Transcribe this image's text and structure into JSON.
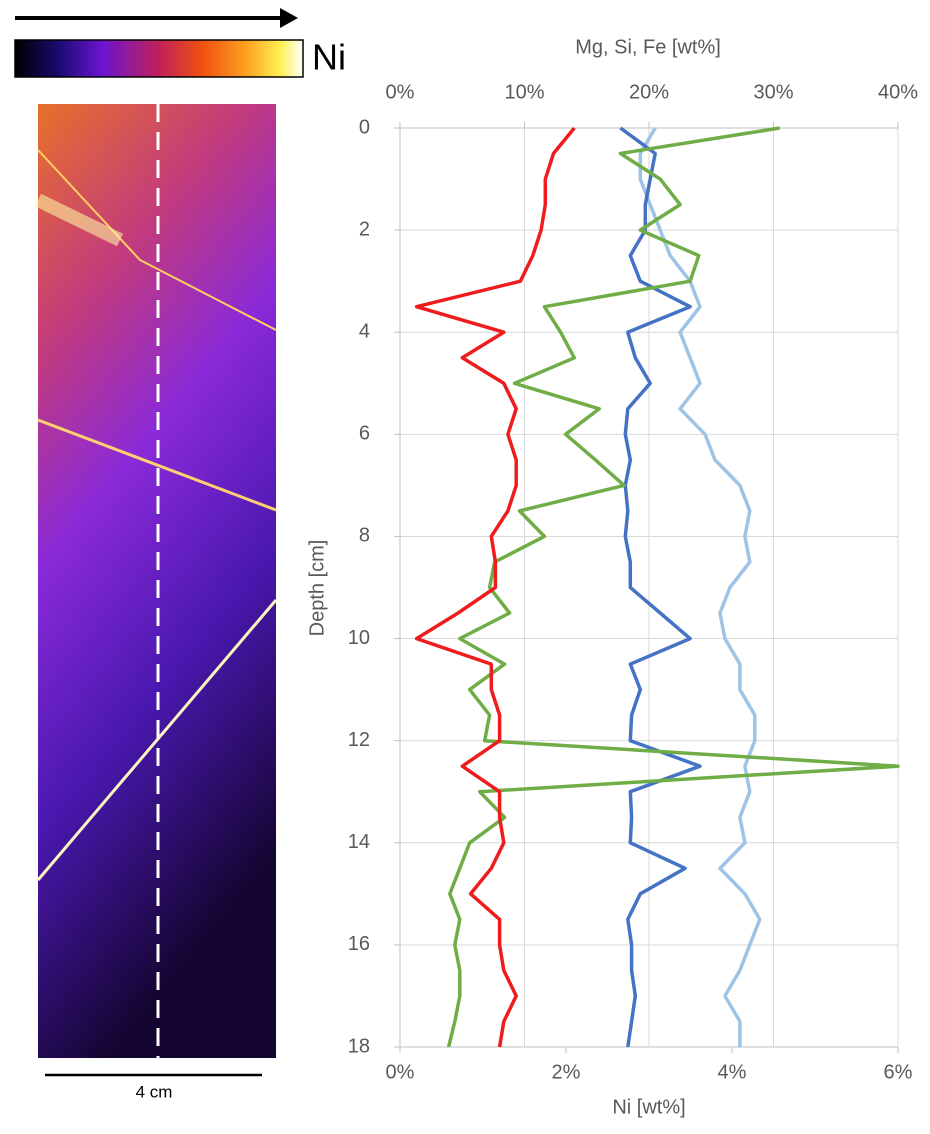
{
  "figure": {
    "colorbar_label": "Ni",
    "scale_label": "4 cm"
  },
  "chart_data": {
    "type": "line",
    "x2label": "Mg, Si, Fe [wt%]",
    "xlabel": "Ni [wt%]",
    "ylabel": "Depth [cm]",
    "y": [
      0,
      0.5,
      1,
      1.5,
      2,
      2.5,
      3,
      3.5,
      4,
      4.5,
      5,
      5.5,
      6,
      6.5,
      7,
      7.5,
      8,
      8.5,
      9,
      9.5,
      10,
      10.5,
      11,
      11.5,
      12,
      12.5,
      13,
      13.5,
      14,
      14.5,
      15,
      15.5,
      16,
      16.5,
      17,
      17.5,
      18
    ],
    "ylim": [
      0,
      18
    ],
    "y_inverted": true,
    "yticks": [
      0,
      2,
      4,
      6,
      8,
      10,
      12,
      14,
      16,
      18
    ],
    "xlim": [
      0,
      6
    ],
    "xticks": [
      {
        "value": 0,
        "label": "0%"
      },
      {
        "value": 2,
        "label": "2%"
      },
      {
        "value": 4,
        "label": "4%"
      },
      {
        "value": 6,
        "label": "6%"
      }
    ],
    "x2lim": [
      0,
      40
    ],
    "x2ticks": [
      {
        "value": 0,
        "label": "0%"
      },
      {
        "value": 10,
        "label": "10%"
      },
      {
        "value": 20,
        "label": "20%"
      },
      {
        "value": 30,
        "label": "30%"
      },
      {
        "value": 40,
        "label": "40%"
      }
    ],
    "grid": true,
    "series": [
      {
        "color": "#9dc3e6",
        "axis": "x2",
        "values": [
          20.5,
          19.3,
          19.3,
          20.1,
          20.9,
          21.7,
          23.3,
          24.1,
          22.5,
          23.3,
          24.1,
          22.5,
          24.5,
          25.3,
          27.3,
          28.1,
          27.7,
          28.1,
          26.5,
          25.7,
          26.1,
          27.3,
          27.3,
          28.5,
          28.5,
          27.7,
          28.1,
          27.3,
          27.7,
          25.7,
          27.7,
          28.9,
          28.1,
          27.3,
          26.1,
          27.3,
          27.3
        ]
      },
      {
        "color": "#4472c4",
        "axis": "x2",
        "values": [
          17.7,
          20.5,
          20.1,
          19.7,
          19.7,
          18.5,
          19.3,
          23.3,
          18.3,
          18.9,
          20.1,
          18.3,
          18.1,
          18.5,
          18.1,
          18.3,
          18.1,
          18.5,
          18.5,
          20.9,
          23.3,
          18.5,
          19.3,
          18.6,
          18.5,
          24.1,
          18.5,
          18.6,
          18.5,
          22.9,
          19.3,
          18.3,
          18.6,
          18.6,
          18.9,
          18.6,
          18.3
        ]
      },
      {
        "color": "#70ad47",
        "axis": "x2",
        "values": [
          30.5,
          17.7,
          20.9,
          22.5,
          19.3,
          24,
          23.3,
          11.6,
          12.9,
          14,
          9.2,
          16,
          13.3,
          15.7,
          18,
          9.6,
          11.6,
          7.6,
          7.2,
          8.8,
          4.8,
          8.4,
          5.6,
          7.2,
          6.8,
          40,
          6.4,
          8.4,
          5.6,
          4.8,
          4,
          4.8,
          4.4,
          4.8,
          4.8,
          4.4,
          3.9
        ]
      },
      {
        "color": "#ee1c1c",
        "values": [
          2.1,
          1.85,
          1.75,
          1.75,
          1.7,
          1.6,
          1.45,
          0.2,
          1.25,
          0.75,
          1.25,
          1.4,
          1.3,
          1.4,
          1.4,
          1.3,
          1.1,
          1.15,
          1.15,
          0.7,
          0.2,
          1.1,
          1.1,
          1.2,
          1.2,
          0.75,
          1.2,
          1.2,
          1.25,
          1.1,
          0.85,
          1.2,
          1.2,
          1.25,
          1.4,
          1.25,
          1.2
        ]
      }
    ]
  }
}
